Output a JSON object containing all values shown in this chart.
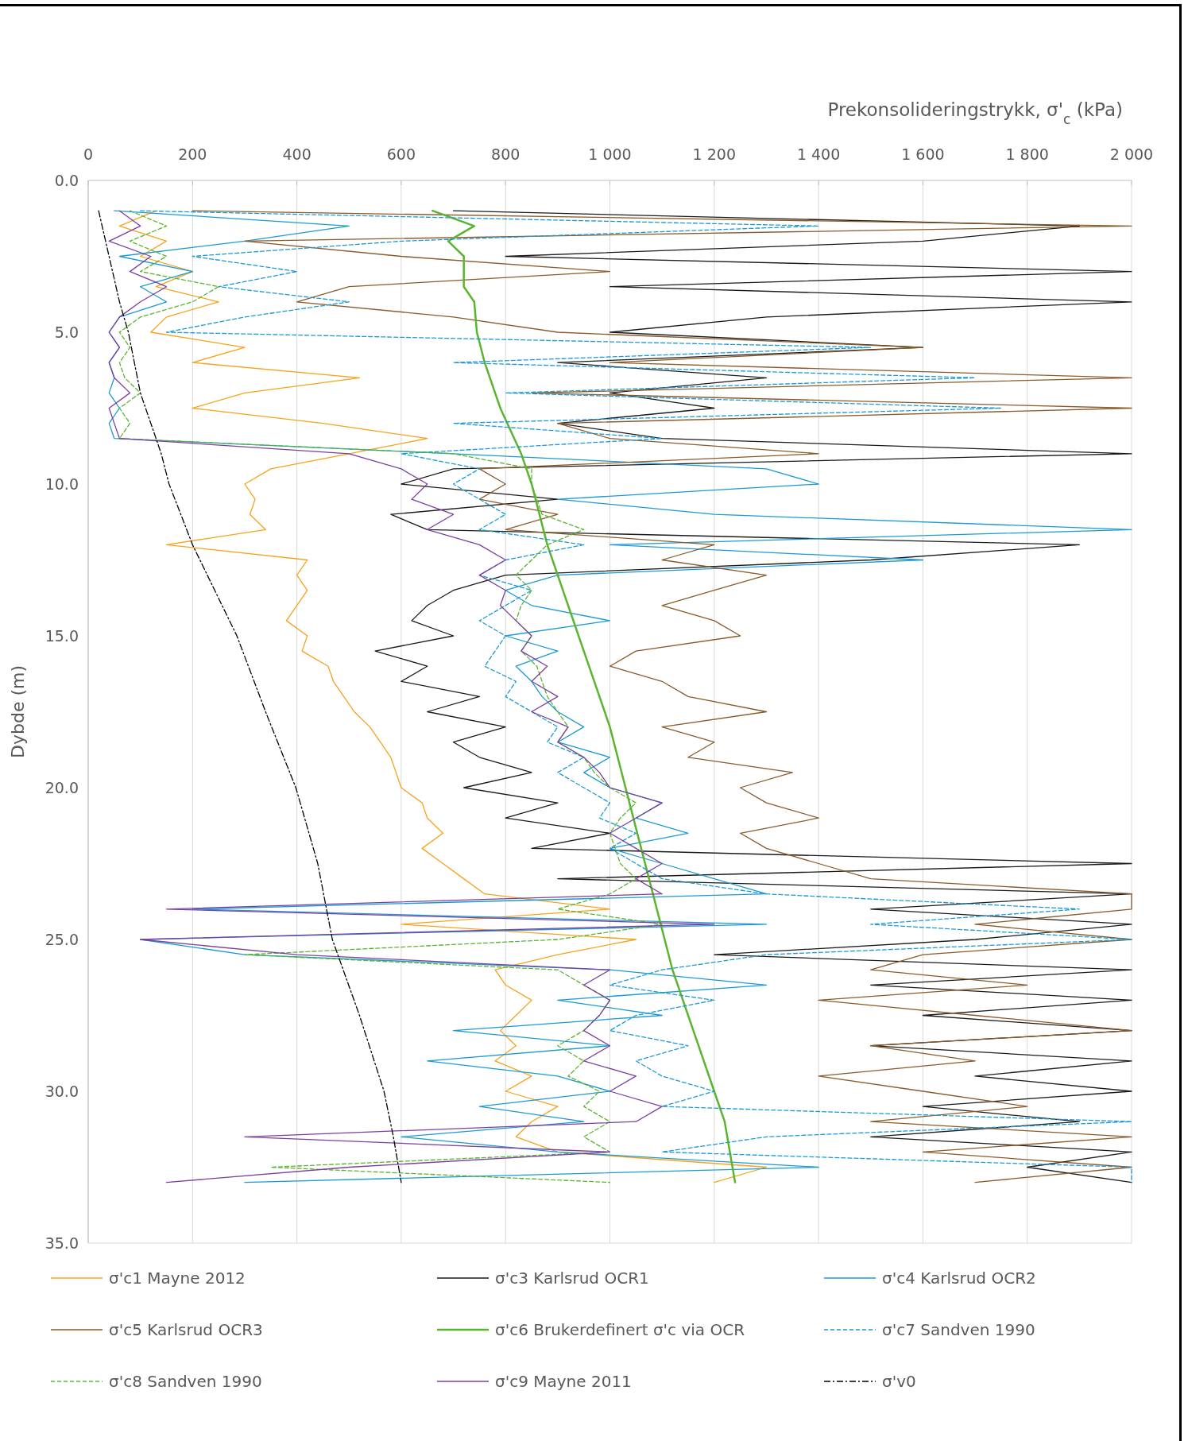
{
  "chart_data": {
    "type": "line",
    "xlabel": "Prekonsolideringstrykk, σ'$_{c}$ (kPa)",
    "ylabel": "Dybde (m)",
    "xlim": [
      0,
      2000
    ],
    "xticks": [
      0,
      200,
      400,
      600,
      800,
      {
        "value": 1000,
        "label": "1 000"
      },
      {
        "value": 1200,
        "label": "1 200"
      },
      {
        "value": 1400,
        "label": "1 400"
      },
      {
        "value": 1600,
        "label": "1 600"
      },
      {
        "value": 1800,
        "label": "1 800"
      },
      {
        "value": 2000,
        "label": "2 000"
      }
    ],
    "ylim": [
      35,
      0
    ],
    "yticks": [
      {
        "value": 0,
        "label": "0.0"
      },
      {
        "value": 5,
        "label": "5.0"
      },
      {
        "value": 10,
        "label": "10.0"
      },
      {
        "value": 15,
        "label": "15.0"
      },
      {
        "value": 20,
        "label": "20.0"
      },
      {
        "value": 25,
        "label": "25.0"
      },
      {
        "value": 30,
        "label": "30.0"
      },
      {
        "value": 35,
        "label": "35.0"
      }
    ],
    "grid": "x",
    "legend": "bottom",
    "marker": "none",
    "series": [
      {
        "name": "σ'c1 Mayne 2012",
        "color": "#f7a21b",
        "line_style": "solid",
        "x": [
          130,
          60,
          150,
          100,
          200,
          130,
          250,
          150,
          120,
          300,
          200,
          520,
          300,
          200,
          450,
          650,
          500,
          350,
          300,
          320,
          310,
          340,
          150,
          420,
          400,
          420,
          400,
          380,
          420,
          410,
          460,
          470,
          490,
          510,
          540,
          560,
          580,
          590,
          600,
          640,
          650,
          680,
          640,
          680,
          720,
          760,
          1000,
          600,
          1050,
          900,
          780,
          800,
          850,
          820,
          790,
          820,
          780,
          850,
          800,
          900,
          850,
          820,
          900,
          1300,
          1200
        ],
        "values": [
          1,
          1.5,
          2,
          2.5,
          3,
          3.5,
          4,
          4.5,
          5,
          5.5,
          6,
          6.5,
          7,
          7.5,
          8,
          8.5,
          9,
          9.5,
          10,
          10.5,
          11,
          11.5,
          12,
          12.5,
          13,
          13.5,
          14,
          14.5,
          15,
          15.5,
          16,
          16.5,
          17,
          17.5,
          18,
          18.5,
          19,
          19.5,
          20,
          20.5,
          21,
          21.5,
          22,
          22.5,
          23,
          23.5,
          24,
          24.5,
          25,
          25.5,
          26,
          26.5,
          27,
          27.5,
          28,
          28.5,
          29,
          29.5,
          30,
          30.5,
          31,
          31.5,
          32,
          32.5,
          33
        ]
      },
      {
        "name": "σ'c3 Karlsrud OCR1",
        "color": "#1a1a1a",
        "line_style": "solid",
        "x": [
          700,
          1900,
          1600,
          800,
          2000,
          1000,
          2000,
          1300,
          1000,
          1600,
          900,
          1300,
          1000,
          1200,
          900,
          1100,
          2000,
          700,
          600,
          900,
          580,
          650,
          1900,
          1500,
          800,
          700,
          650,
          620,
          700,
          550,
          650,
          600,
          750,
          650,
          800,
          700,
          750,
          850,
          720,
          900,
          800,
          1000,
          850,
          2000,
          900,
          2000,
          1500,
          2000,
          1700,
          1200,
          2000,
          1500,
          2000,
          1600,
          2000,
          1500,
          2000,
          1700,
          2000,
          1600,
          1900,
          1500,
          2000,
          1800,
          2000
        ],
        "values": [
          1,
          1.5,
          2,
          2.5,
          3,
          3.5,
          4,
          4.5,
          5,
          5.5,
          6,
          6.5,
          7,
          7.5,
          8,
          8.5,
          9,
          9.5,
          10,
          10.5,
          11,
          11.5,
          12,
          12.5,
          13,
          13.5,
          14,
          14.5,
          15,
          15.5,
          16,
          16.5,
          17,
          17.5,
          18,
          18.5,
          19,
          19.5,
          20,
          20.5,
          21,
          21.5,
          22,
          22.5,
          23,
          23.5,
          24,
          24.5,
          25,
          25.5,
          26,
          26.5,
          27,
          27.5,
          28,
          28.5,
          29,
          29.5,
          30,
          30.5,
          31,
          31.5,
          32,
          32.5,
          33
        ]
      },
      {
        "name": "σ'c4 Karlsrud OCR2",
        "color": "#1b9ad6",
        "line_style": "solid",
        "x": [
          50,
          500,
          300,
          60,
          200,
          100,
          150,
          60,
          40,
          60,
          40,
          50,
          40,
          60,
          40,
          50,
          700,
          1300,
          1400,
          900,
          1200,
          2000,
          1000,
          1600,
          900,
          800,
          850,
          1000,
          800,
          900,
          820,
          850,
          870,
          900,
          950,
          900,
          1000,
          950,
          1000,
          1100,
          1050,
          1150,
          1000,
          1100,
          1200,
          1300,
          200,
          1300,
          100,
          300,
          1000,
          1300,
          900,
          1100,
          700,
          1000,
          650,
          900,
          1000,
          750,
          950,
          600,
          900,
          1400,
          300
        ],
        "values": [
          1,
          1.5,
          2,
          2.5,
          3,
          3.5,
          4,
          4.5,
          5,
          5.5,
          6,
          6.5,
          7,
          7.5,
          8,
          8.5,
          9,
          9.5,
          10,
          10.5,
          11,
          11.5,
          12,
          12.5,
          13,
          13.5,
          14,
          14.5,
          15,
          15.5,
          16,
          16.5,
          17,
          17.5,
          18,
          18.5,
          19,
          19.5,
          20,
          20.5,
          21,
          21.5,
          22,
          22.5,
          23,
          23.5,
          24,
          24.5,
          25,
          25.5,
          26,
          26.5,
          27,
          27.5,
          28,
          28.5,
          29,
          29.5,
          30,
          30.5,
          31,
          31.5,
          32,
          32.5,
          33
        ]
      },
      {
        "name": "σ'c5 Karlsrud OCR3",
        "color": "#8b5a2b",
        "line_style": "solid",
        "x": [
          200,
          2000,
          300,
          600,
          1000,
          500,
          400,
          700,
          900,
          1600,
          1000,
          2000,
          850,
          2000,
          900,
          1000,
          1400,
          750,
          800,
          750,
          900,
          800,
          1200,
          1100,
          1300,
          1200,
          1100,
          1200,
          1250,
          1050,
          1000,
          1100,
          1150,
          1300,
          1100,
          1200,
          1150,
          1350,
          1250,
          1300,
          1400,
          1250,
          1300,
          1400,
          1500,
          2000,
          2000,
          1700,
          2000,
          1600,
          1500,
          1800,
          1400,
          1700,
          2000,
          1500,
          1700,
          1400,
          1600,
          1800,
          1500,
          2000,
          1600,
          2000,
          1700
        ],
        "values": [
          1,
          1.5,
          2,
          2.5,
          3,
          3.5,
          4,
          4.5,
          5,
          5.5,
          6,
          6.5,
          7,
          7.5,
          8,
          8.5,
          9,
          9.5,
          10,
          10.5,
          11,
          11.5,
          12,
          12.5,
          13,
          13.5,
          14,
          14.5,
          15,
          15.5,
          16,
          16.5,
          17,
          17.5,
          18,
          18.5,
          19,
          19.5,
          20,
          20.5,
          21,
          21.5,
          22,
          22.5,
          23,
          23.5,
          24,
          24.5,
          25,
          25.5,
          26,
          26.5,
          27,
          27.5,
          28,
          28.5,
          29,
          29.5,
          30,
          30.5,
          31,
          31.5,
          32,
          32.5,
          33
        ]
      },
      {
        "name": "σ'c6 Brukerdefinert σ'c via OCR",
        "color": "#5ab52e",
        "line_style": "solid",
        "x": [
          660,
          740,
          690,
          720,
          720,
          740,
          745,
          760,
          790,
          830,
          850,
          880,
          920,
          960,
          1000,
          1030,
          1060,
          1090,
          1120,
          1160,
          1200,
          1220,
          1240
        ],
        "values": [
          1,
          1.5,
          2,
          2.5,
          3.5,
          4,
          5,
          6,
          7.5,
          9,
          10,
          12,
          14,
          16,
          18,
          20,
          22,
          24,
          26,
          28,
          30,
          31,
          33
        ]
      },
      {
        "name": "σ'c7 Sandven 1990",
        "color": "#1b9ad6",
        "line_style": "dashed",
        "x": [
          100,
          1400,
          600,
          200,
          400,
          250,
          500,
          300,
          150,
          1500,
          700,
          1700,
          800,
          1750,
          700,
          1100,
          600,
          750,
          700,
          750,
          800,
          750,
          950,
          800,
          750,
          850,
          800,
          750,
          800,
          780,
          760,
          820,
          800,
          850,
          900,
          880,
          950,
          900,
          950,
          1000,
          980,
          1050,
          1000,
          1050,
          1100,
          1300,
          1900,
          1500,
          2000,
          1300,
          1100,
          1000,
          1200,
          1050,
          1000,
          1150,
          1050,
          1100,
          1200,
          1100,
          2000,
          1300,
          1100,
          2000,
          2000
        ],
        "values": [
          1,
          1.5,
          2,
          2.5,
          3,
          3.5,
          4,
          4.5,
          5,
          5.5,
          6,
          6.5,
          7,
          7.5,
          8,
          8.5,
          9,
          9.5,
          10,
          10.5,
          11,
          11.5,
          12,
          12.5,
          13,
          13.5,
          14,
          14.5,
          15,
          15.5,
          16,
          16.5,
          17,
          17.5,
          18,
          18.5,
          19,
          19.5,
          20,
          20.5,
          21,
          21.5,
          22,
          22.5,
          23,
          23.5,
          24,
          24.5,
          25,
          25.5,
          26,
          26.5,
          27,
          27.5,
          28,
          28.5,
          29,
          29.5,
          30,
          30.5,
          31,
          31.5,
          32,
          32.5,
          33
        ]
      },
      {
        "name": "σ'c8 Sandven 1990",
        "color": "#5ab52e",
        "line_style": "dashed",
        "x": [
          80,
          150,
          80,
          150,
          100,
          250,
          200,
          100,
          60,
          80,
          60,
          70,
          100,
          60,
          80,
          60,
          700,
          850,
          850,
          860,
          870,
          950,
          880,
          850,
          820,
          850,
          830,
          820,
          850,
          830,
          860,
          870,
          880,
          900,
          920,
          900,
          950,
          970,
          1000,
          1050,
          1020,
          1000,
          1010,
          1020,
          1050,
          1000,
          900,
          1100,
          900,
          300,
          900,
          950,
          1000,
          980,
          950,
          900,
          950,
          920,
          980,
          950,
          1000,
          950,
          1000,
          350,
          1000
        ],
        "values": [
          1,
          1.5,
          2,
          2.5,
          3,
          3.5,
          4,
          4.5,
          5,
          5.5,
          6,
          6.5,
          7,
          7.5,
          8,
          8.5,
          9,
          9.5,
          10,
          10.5,
          11,
          11.5,
          12,
          12.5,
          13,
          13.5,
          14,
          14.5,
          15,
          15.5,
          16,
          16.5,
          17,
          17.5,
          18,
          18.5,
          19,
          19.5,
          20,
          20.5,
          21,
          21.5,
          22,
          22.5,
          23,
          23.5,
          24,
          24.5,
          25,
          25.5,
          26,
          26.5,
          27,
          27.5,
          28,
          28.5,
          29,
          29.5,
          30,
          30.5,
          31,
          31.5,
          32,
          32.5,
          33
        ]
      },
      {
        "name": "σ'c9 Mayne 2011",
        "color": "#7b3fa0",
        "line_style": "solid",
        "x": [
          60,
          100,
          40,
          120,
          80,
          150,
          100,
          60,
          40,
          60,
          40,
          50,
          80,
          40,
          50,
          60,
          500,
          600,
          650,
          620,
          700,
          650,
          750,
          800,
          750,
          800,
          790,
          820,
          850,
          830,
          880,
          850,
          900,
          850,
          920,
          900,
          950,
          980,
          1000,
          1100,
          1050,
          1000,
          1050,
          1100,
          1050,
          1100,
          150,
          1200,
          100,
          400,
          1000,
          950,
          1000,
          980,
          950,
          1000,
          950,
          1050,
          1000,
          1100,
          1050,
          300,
          1000,
          500,
          150
        ],
        "values": [
          1,
          1.5,
          2,
          2.5,
          3,
          3.5,
          4,
          4.5,
          5,
          5.5,
          6,
          6.5,
          7,
          7.5,
          8,
          8.5,
          9,
          9.5,
          10,
          10.5,
          11,
          11.5,
          12,
          12.5,
          13,
          13.5,
          14,
          14.5,
          15,
          15.5,
          16,
          16.5,
          17,
          17.5,
          18,
          18.5,
          19,
          19.5,
          20,
          20.5,
          21,
          21.5,
          22,
          22.5,
          23,
          23.5,
          24,
          24.5,
          25,
          25.5,
          26,
          26.5,
          27,
          27.5,
          28,
          28.5,
          29,
          29.5,
          30,
          30.5,
          31,
          31.5,
          32,
          32.5,
          33
        ]
      },
      {
        "name": "σ'v0",
        "color": "#000000",
        "line_style": "dashdot",
        "x": [
          20,
          60,
          77,
          100,
          140,
          155,
          200,
          285,
          340,
          398,
          440,
          468,
          520,
          567,
          585,
          600
        ],
        "values": [
          1,
          4,
          5,
          7,
          9,
          10,
          12,
          15,
          17.5,
          20,
          22.5,
          25,
          27.5,
          30,
          31.5,
          33
        ]
      }
    ]
  }
}
